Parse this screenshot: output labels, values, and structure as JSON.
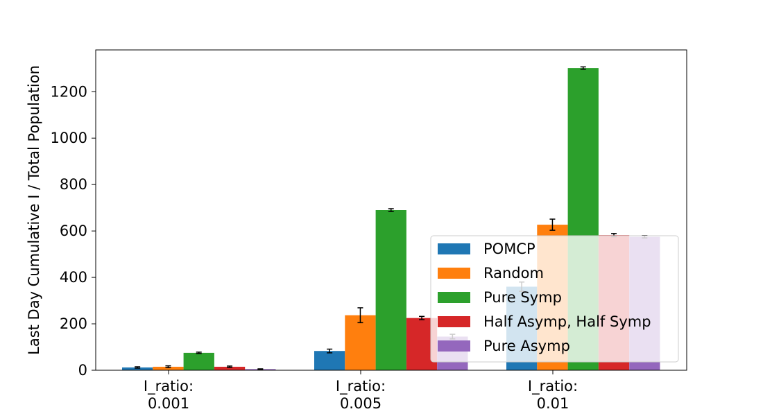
{
  "chart_data": {
    "type": "bar",
    "title": "",
    "xlabel": "",
    "ylabel": "Last Day Cumulative I / Total Population",
    "categories": [
      [
        "I_ratio:",
        "0.001"
      ],
      [
        "I_ratio:",
        "0.005"
      ],
      [
        "I_ratio:",
        "0.01"
      ]
    ],
    "ylim": [
      0,
      1380
    ],
    "yticks": [
      0,
      200,
      400,
      600,
      800,
      1000,
      1200
    ],
    "grid": false,
    "legend_position": "lower-right",
    "series": [
      {
        "name": "POMCP",
        "color": "#1f77b4",
        "values": [
          12,
          83,
          360
        ],
        "errors": [
          3,
          8,
          20
        ]
      },
      {
        "name": "Random",
        "color": "#ff7f0e",
        "values": [
          15,
          237,
          627
        ],
        "errors": [
          4,
          32,
          24
        ]
      },
      {
        "name": "Pure Symp",
        "color": "#2ca02c",
        "values": [
          75,
          690,
          1302
        ],
        "errors": [
          3,
          6,
          5
        ]
      },
      {
        "name": "Half Asymp, Half Symp",
        "color": "#d62728",
        "values": [
          15,
          225,
          582
        ],
        "errors": [
          3,
          7,
          7
        ]
      },
      {
        "name": "Pure Asymp",
        "color": "#9467bd",
        "values": [
          5,
          145,
          575
        ],
        "errors": [
          1,
          10,
          5
        ]
      }
    ]
  }
}
